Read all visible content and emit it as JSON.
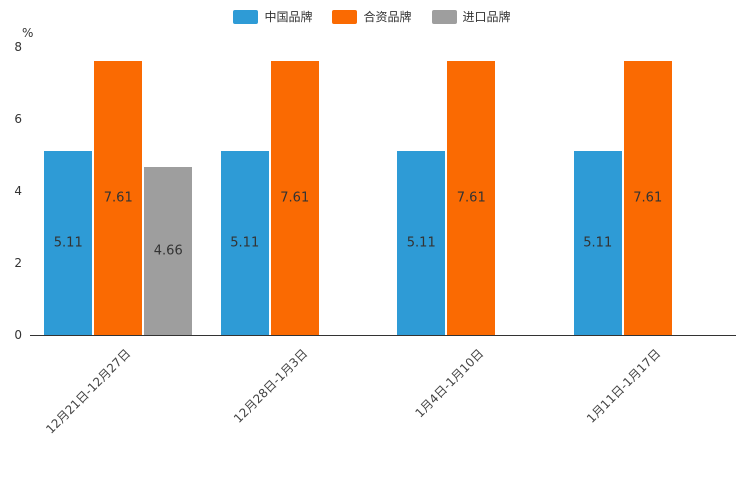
{
  "chart_data": {
    "type": "bar",
    "title": "",
    "ylabel": "%",
    "xlabel": "",
    "ylim": [
      0,
      8
    ],
    "yticks": [
      0,
      2,
      4,
      6,
      8
    ],
    "grid": false,
    "legend_position": "top",
    "value_labels": true,
    "categories": [
      "12月21日-12月27日",
      "12月28日-1月3日",
      "1月4日-1月10日",
      "1月11日-1月17日"
    ],
    "series": [
      {
        "name": "中国品牌",
        "color": "#2E9BD6",
        "values": [
          5.11,
          5.11,
          5.11,
          5.11
        ]
      },
      {
        "name": "合资品牌",
        "color": "#FA6A02",
        "values": [
          7.61,
          7.61,
          7.61,
          7.61
        ]
      },
      {
        "name": "进口品牌",
        "color": "#9E9E9E",
        "values": [
          4.66,
          null,
          null,
          null
        ]
      }
    ]
  },
  "colors": {
    "axis": "#333333",
    "label_text": "#333333",
    "tick_text": "#444444",
    "background": "#ffffff"
  }
}
